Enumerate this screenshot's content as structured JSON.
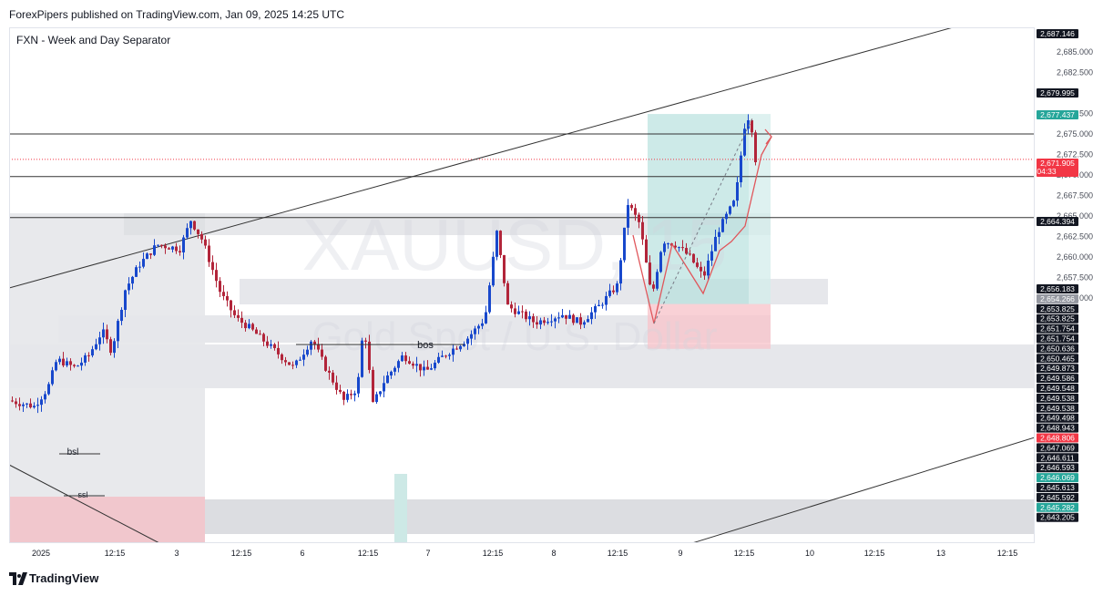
{
  "header": {
    "published": "ForexPipers published on TradingView.com, Jan 09, 2025 14:25 UTC"
  },
  "indicator_label": "FXN - Week and Day Separator",
  "watermark": {
    "symbol": "XAUUSD, 15",
    "name": "Gold Spot / U.S. Dollar"
  },
  "footer": {
    "brand": "TradingView"
  },
  "colors": {
    "up": "#1848cc",
    "down": "#b2253a",
    "green_label": "#26a69a",
    "red_label": "#f23645",
    "dark_label": "#131722",
    "target_zone": "#b2dfdb",
    "stop_zone": "#f7c5cc",
    "gray_zone": "#d1d4dc"
  },
  "annotations": {
    "bos": "bos",
    "bsl": "bsl",
    "ssl": "ssl"
  },
  "chart_data": {
    "type": "candlestick",
    "symbol": "XAUUSD",
    "timeframe": "15",
    "ylim": [
      2641.9,
      2688.0
    ],
    "x_tick_labels": [
      "2025",
      "12:15",
      "3",
      "12:15",
      "6",
      "12:15",
      "7",
      "12:15",
      "8",
      "12:15",
      "9",
      "12:15",
      "10",
      "12:15",
      "13",
      "12:15"
    ],
    "y_tick_labels": [
      2685.0,
      2682.5,
      2677.5,
      2675.0,
      2672.5,
      2670.0,
      2667.5,
      2665.0,
      2662.5,
      2660.0,
      2657.5,
      2655.0
    ],
    "price_labels": [
      {
        "text": "2,687.146",
        "value": 2687.146,
        "style": "dark"
      },
      {
        "text": "2,679.995",
        "value": 2679.995,
        "style": "dark"
      },
      {
        "text": "2,677.437",
        "value": 2677.437,
        "style": "green"
      },
      {
        "text": "2,671.905",
        "value": 2671.905,
        "style": "red",
        "sub": "04:33"
      },
      {
        "text": "2,664.394",
        "value": 2664.394,
        "style": "dark"
      },
      {
        "text": "2,656.183",
        "value": 2656.183,
        "style": "dark"
      },
      {
        "text": "2,654.266",
        "value": 2654.266,
        "style": "gray"
      },
      {
        "text": "2,653.825",
        "value": 2653.825,
        "style": "dark"
      },
      {
        "text": "2,653.825",
        "value": 2653.825,
        "style": "dark"
      },
      {
        "text": "2,651.754",
        "value": 2651.754,
        "style": "dark"
      },
      {
        "text": "2,651.754",
        "value": 2651.754,
        "style": "dark"
      },
      {
        "text": "2,650.636",
        "value": 2650.636,
        "style": "dark"
      },
      {
        "text": "2,650.465",
        "value": 2650.465,
        "style": "dark"
      },
      {
        "text": "2,649.873",
        "value": 2649.873,
        "style": "dark"
      },
      {
        "text": "2,649.586",
        "value": 2649.586,
        "style": "dark"
      },
      {
        "text": "2,649.548",
        "value": 2649.548,
        "style": "dark"
      },
      {
        "text": "2,649.538",
        "value": 2649.538,
        "style": "dark"
      },
      {
        "text": "2,649.538",
        "value": 2649.538,
        "style": "dark"
      },
      {
        "text": "2,649.498",
        "value": 2649.498,
        "style": "dark"
      },
      {
        "text": "2,648.943",
        "value": 2648.943,
        "style": "dark"
      },
      {
        "text": "2,648.806",
        "value": 2648.806,
        "style": "red"
      },
      {
        "text": "2,647.069",
        "value": 2647.069,
        "style": "dark"
      },
      {
        "text": "2,646.611",
        "value": 2646.611,
        "style": "dark"
      },
      {
        "text": "2,646.593",
        "value": 2646.593,
        "style": "dark"
      },
      {
        "text": "2,646.069",
        "value": 2646.069,
        "style": "green"
      },
      {
        "text": "2,645.613",
        "value": 2645.613,
        "style": "dark"
      },
      {
        "text": "2,645.592",
        "value": 2645.592,
        "style": "dark"
      },
      {
        "text": "2,645.282",
        "value": 2645.282,
        "style": "green"
      },
      {
        "text": "2,643.205",
        "value": 2643.205,
        "style": "dark"
      }
    ],
    "horizontal_levels": [
      2675.0,
      2669.8,
      2664.8
    ],
    "current_price_line": 2671.905,
    "position": {
      "entry": 2654.266,
      "target": 2677.437,
      "stop": 2648.806
    }
  }
}
